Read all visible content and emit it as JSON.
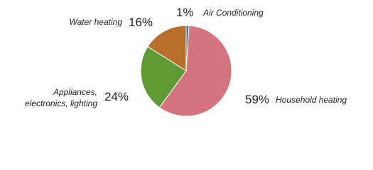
{
  "chart_data": {
    "type": "pie",
    "categories": [
      "Air Conditioning",
      "Household heating",
      "Appliances, electronics, lighting",
      "Water heating"
    ],
    "values": [
      1,
      59,
      24,
      16
    ],
    "value_labels": [
      "1%",
      "59%",
      "24%",
      "16%"
    ],
    "colors": [
      "#2e6fa8",
      "#d4727e",
      "#5f9a35",
      "#b86f2c"
    ]
  }
}
